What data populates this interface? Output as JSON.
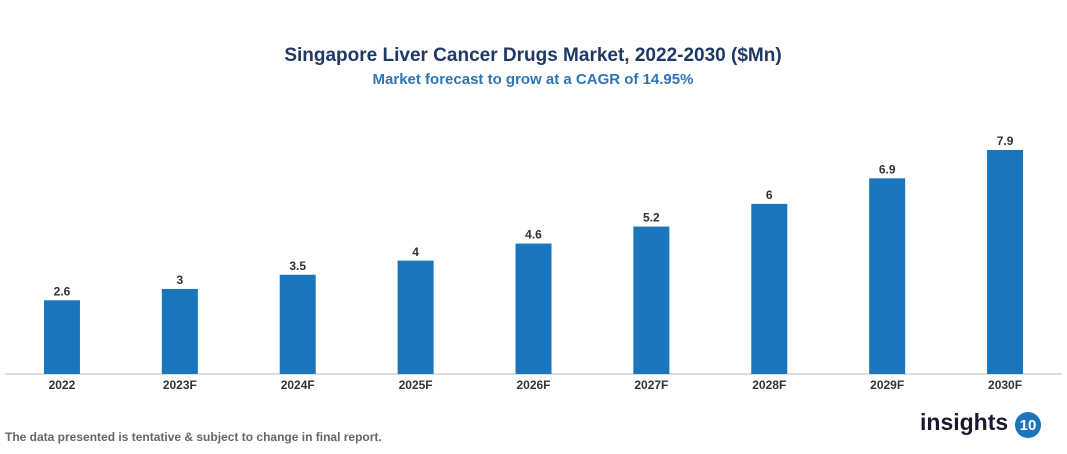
{
  "chart_data": {
    "type": "bar",
    "title": "Singapore Liver Cancer Drugs Market, 2022-2030 ($Mn)",
    "subtitle": "Market forecast to grow at a CAGR of 14.95%",
    "categories": [
      "2022",
      "2023F",
      "2024F",
      "2025F",
      "2026F",
      "2027F",
      "2028F",
      "2029F",
      "2030F"
    ],
    "values": [
      2.6,
      3,
      3.5,
      4,
      4.6,
      5.2,
      6,
      6.9,
      7.9
    ],
    "color": "#1a75bc"
  },
  "footer": {
    "note": "The data presented is tentative & subject to change in final report.",
    "logo_text": "insights",
    "logo_number": "10"
  }
}
